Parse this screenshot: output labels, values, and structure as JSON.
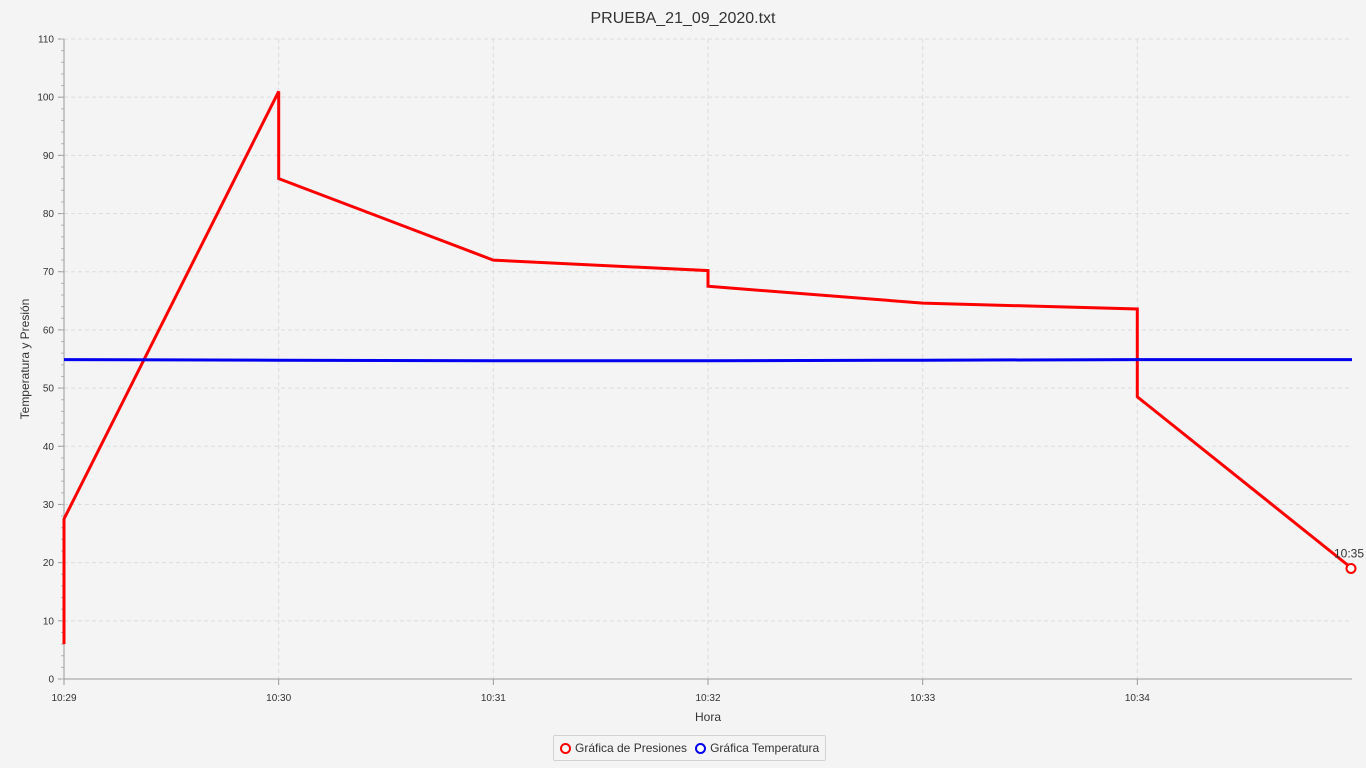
{
  "chart_data": {
    "type": "line",
    "title": "PRUEBA_21_09_2020.txt",
    "xlabel": "Hora",
    "ylabel": "Temperatura y Presión",
    "xlim": [
      "10:29",
      "10:35"
    ],
    "ylim": [
      0,
      110
    ],
    "x_ticks": [
      "10:29",
      "10:30",
      "10:31",
      "10:32",
      "10:33",
      "10:34"
    ],
    "y_ticks": [
      0,
      10,
      20,
      30,
      40,
      50,
      60,
      70,
      80,
      90,
      100,
      110
    ],
    "grid": true,
    "legend_position": "bottom-center",
    "series": [
      {
        "name": "Gráfica de Presiones",
        "color": "#ff0000",
        "points": [
          {
            "x": "10:29:00",
            "y": 6
          },
          {
            "x": "10:29:00",
            "y": 27.5
          },
          {
            "x": "10:30:00",
            "y": 101
          },
          {
            "x": "10:30:00",
            "y": 86
          },
          {
            "x": "10:31:00",
            "y": 72
          },
          {
            "x": "10:32:00",
            "y": 70.2
          },
          {
            "x": "10:32:00",
            "y": 67.5
          },
          {
            "x": "10:33:00",
            "y": 64.6
          },
          {
            "x": "10:34:00",
            "y": 63.6
          },
          {
            "x": "10:34:00",
            "y": 48.5
          },
          {
            "x": "10:35:00",
            "y": 19
          }
        ]
      },
      {
        "name": "Gráfica Temperatura",
        "color": "#0000ee",
        "points": [
          {
            "x": "10:29:00",
            "y": 54.9
          },
          {
            "x": "10:30:00",
            "y": 54.8
          },
          {
            "x": "10:31:00",
            "y": 54.7
          },
          {
            "x": "10:32:00",
            "y": 54.7
          },
          {
            "x": "10:33:00",
            "y": 54.8
          },
          {
            "x": "10:34:00",
            "y": 54.9
          },
          {
            "x": "10:35:00",
            "y": 54.9
          }
        ]
      }
    ],
    "annotations": [
      {
        "text": "10:35",
        "x": "10:35:00",
        "y": 19
      }
    ]
  }
}
